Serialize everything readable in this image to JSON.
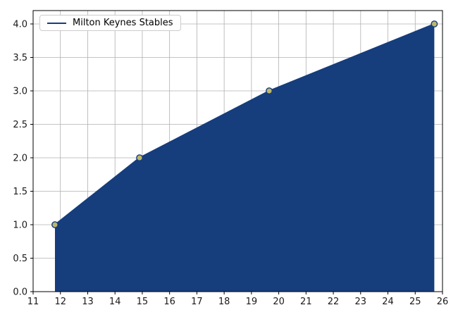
{
  "chart_data": {
    "type": "area",
    "title": "",
    "xlabel": "",
    "ylabel": "",
    "xlim": [
      11,
      26
    ],
    "ylim": [
      0,
      4.2
    ],
    "grid": true,
    "grid_color": "#b0b0b0",
    "spine_color": "#000000",
    "background_color": "#ffffff",
    "x_ticks": [
      11,
      12,
      13,
      14,
      15,
      16,
      17,
      18,
      19,
      20,
      21,
      22,
      23,
      24,
      25,
      26
    ],
    "y_ticks": [
      0.0,
      0.5,
      1.0,
      1.5,
      2.0,
      2.5,
      3.0,
      3.5,
      4.0
    ],
    "y_tick_labels": [
      "0.0",
      "0.5",
      "1.0",
      "1.5",
      "2.0",
      "2.5",
      "3.0",
      "3.5",
      "4.0"
    ],
    "legend": {
      "position": "upper left",
      "entries": [
        "Milton Keynes Stables"
      ]
    },
    "series": [
      {
        "name": "Milton Keynes Stables",
        "x": [
          11.8,
          14.9,
          19.65,
          25.7
        ],
        "y": [
          1.0,
          2.0,
          3.0,
          4.0
        ],
        "baseline": 0,
        "line_color": "#163d7c",
        "fill_color": "#163d7c",
        "marker": "o",
        "marker_color": "#bdb76b",
        "marker_edge_color": "#163d7c"
      }
    ]
  }
}
